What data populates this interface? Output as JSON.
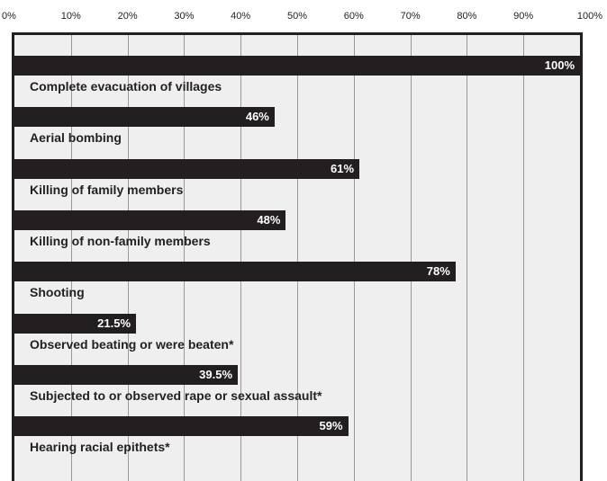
{
  "chart_data": {
    "type": "bar",
    "orientation": "horizontal",
    "title": "",
    "xlabel": "",
    "ylabel": "",
    "xlim": [
      0,
      100
    ],
    "grid": true,
    "x_ticks": [
      "0%",
      "10%",
      "20%",
      "30%",
      "40%",
      "50%",
      "60%",
      "70%",
      "80%",
      "90%",
      "100%"
    ],
    "categories": [
      "Complete evacuation of villages",
      "Aerial bombing",
      "Killing of family members",
      "Killing of non-family members",
      "Shooting",
      "Observed beating or were beaten*",
      "Subjected to or observed rape or sexual assault*",
      "Hearing racial epithets*"
    ],
    "values": [
      100,
      46,
      61,
      48,
      78,
      21.5,
      39.5,
      59
    ],
    "value_labels": [
      "100%",
      "46%",
      "61%",
      "48%",
      "78%",
      "21.5%",
      "39.5%",
      "59%"
    ],
    "bar_color": "#231f20",
    "background_color": "#efefef"
  }
}
